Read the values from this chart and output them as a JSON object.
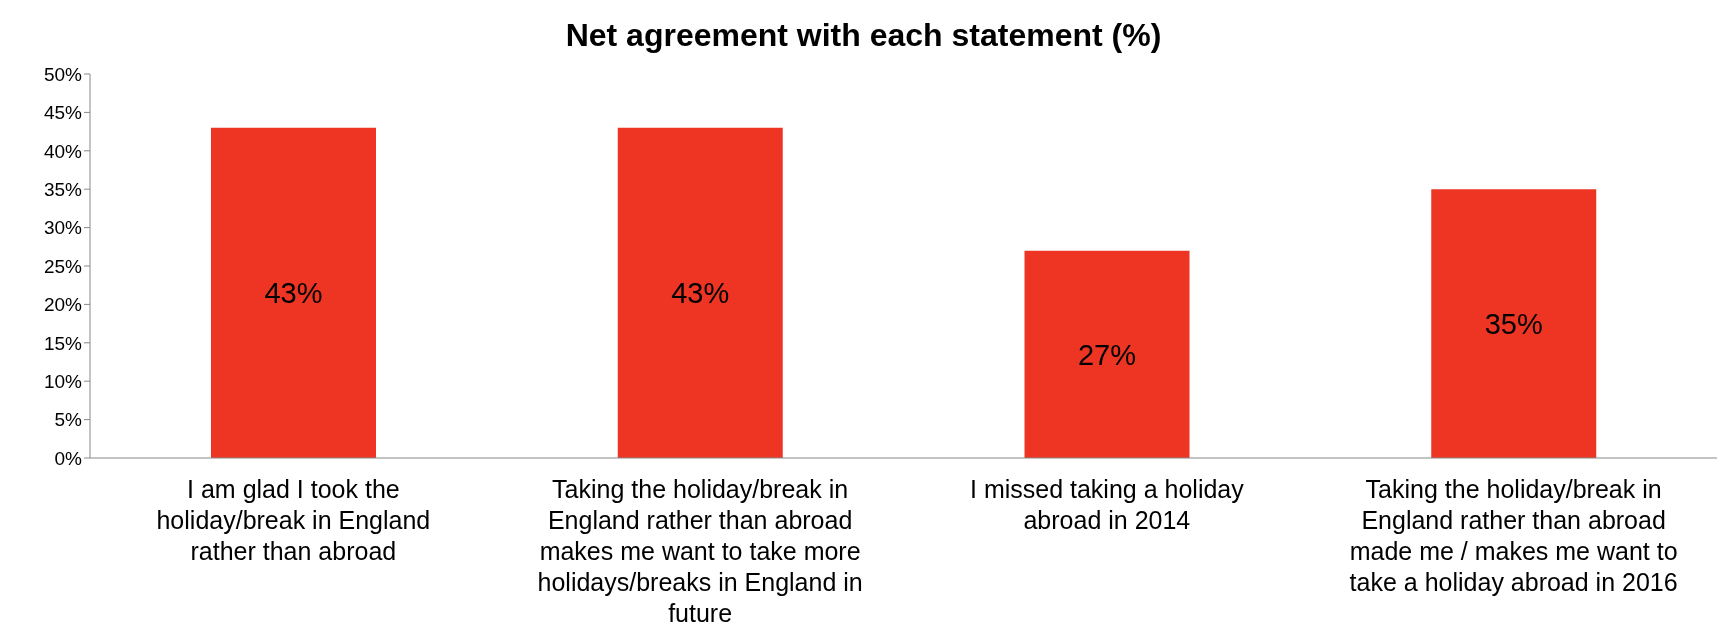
{
  "chart_data": {
    "type": "bar",
    "title": "Net agreement with each statement (%)",
    "categories": [
      "I am glad I took the holiday/break in England rather than abroad",
      "Taking the holiday/break in England rather than abroad makes me want to take more holidays/breaks in England in future",
      "I missed taking a holiday abroad in 2014",
      "Taking the holiday/break in England rather than abroad made me / makes me want to take a holiday abroad in 2016"
    ],
    "values": [
      43,
      43,
      27,
      35
    ],
    "value_labels": [
      "43%",
      "43%",
      "27%",
      "35%"
    ],
    "color": "#ee3524",
    "ylim": [
      0,
      50
    ],
    "yticks": [
      {
        "value": 0,
        "label": "0%"
      },
      {
        "value": 5,
        "label": "5%"
      },
      {
        "value": 10,
        "label": "10%"
      },
      {
        "value": 15,
        "label": "15%"
      },
      {
        "value": 20,
        "label": "20%"
      },
      {
        "value": 25,
        "label": "25%"
      },
      {
        "value": 30,
        "label": "30%"
      },
      {
        "value": 35,
        "label": "35%"
      },
      {
        "value": 40,
        "label": "40%"
      },
      {
        "value": 45,
        "label": "45%"
      },
      {
        "value": 50,
        "label": "50%"
      }
    ],
    "grid": false,
    "legend": false
  }
}
